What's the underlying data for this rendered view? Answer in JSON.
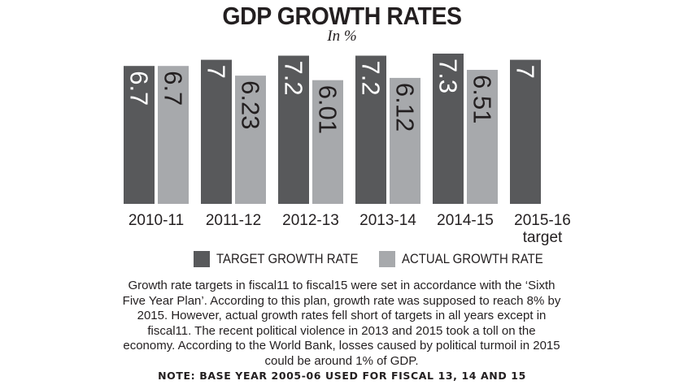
{
  "chart_data": {
    "type": "bar",
    "title": "GDP GROWTH RATES",
    "subtitle": "In %",
    "categories": [
      "2010-11",
      "2011-12",
      "2012-13",
      "2013-14",
      "2014-15",
      "2015-16\ntarget"
    ],
    "series": [
      {
        "name": "TARGET GROWTH RATE",
        "values": [
          6.7,
          7,
          7.2,
          7.2,
          7.3,
          7
        ],
        "labels": [
          "6.7",
          "7",
          "7.2",
          "7.2",
          "7.3",
          "7"
        ],
        "color": "#58595b"
      },
      {
        "name": "ACTUAL GROWTH RATE",
        "values": [
          6.7,
          6.23,
          6.01,
          6.12,
          6.51,
          null
        ],
        "labels": [
          "6.7",
          "6.23",
          "6.01",
          "6.12",
          "6.51",
          ""
        ],
        "color": "#a7a9ac"
      }
    ],
    "xlabel": "",
    "ylabel": "",
    "ylim": [
      0,
      7.3
    ],
    "grid": false,
    "legend": "bottom"
  },
  "note": "Growth rate targets in fiscal11 to fiscal15 were set in accordance with the ‘Sixth Five Year Plan’. According to this plan, growth rate was supposed to reach 8% by 2015. However, actual growth rates fell short of targets in all years except in fiscal11. The recent political violence in 2013 and 2015 took a toll on the economy. According to the World Bank, losses caused by political turmoil in 2015 could be around 1% of GDP.",
  "footnote": "NOTE: BASE YEAR 2005-06 USED FOR FISCAL 13, 14 AND 15"
}
